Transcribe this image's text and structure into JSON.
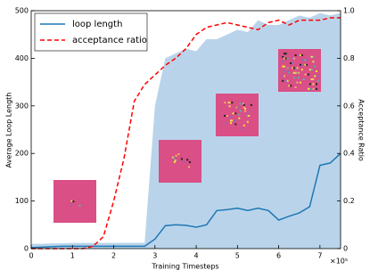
{
  "chart_data": {
    "type": "line",
    "x_label": "Training Timesteps",
    "x_multiplier": "×10⁵",
    "y_label": "Average Loop Length",
    "y2_label": "Acceptance Ratio",
    "x": [
      0,
      0.25,
      0.5,
      0.75,
      1,
      1.25,
      1.5,
      1.75,
      2,
      2.25,
      2.5,
      2.75,
      3,
      3.25,
      3.5,
      3.75,
      4,
      4.25,
      4.5,
      4.75,
      5,
      5.25,
      5.5,
      5.75,
      6,
      6.25,
      6.5,
      6.75,
      7,
      7.25,
      7.5
    ],
    "area": {
      "color": "#b9d4ea",
      "values": [
        10,
        10,
        11,
        11,
        12,
        12,
        12,
        12,
        12,
        12,
        12,
        12,
        300,
        400,
        410,
        420,
        415,
        440,
        440,
        450,
        460,
        455,
        480,
        470,
        470,
        480,
        490,
        485,
        495,
        490,
        495
      ]
    },
    "series": [
      {
        "name": "loop length",
        "color": "#1f77b4",
        "values": [
          2,
          3,
          4,
          5,
          5,
          5,
          5,
          5,
          5,
          5,
          5,
          5,
          20,
          48,
          50,
          49,
          45,
          50,
          80,
          82,
          85,
          80,
          85,
          80,
          60,
          68,
          75,
          88,
          175,
          180,
          200
        ]
      },
      {
        "name": "acceptance ratio",
        "color": "#ff0000",
        "axis": "y2",
        "dashed": true,
        "values": [
          0,
          0,
          0,
          0,
          0,
          0,
          0.01,
          0.05,
          0.2,
          0.38,
          0.62,
          0.69,
          0.73,
          0.77,
          0.8,
          0.84,
          0.9,
          0.93,
          0.94,
          0.95,
          0.94,
          0.93,
          0.92,
          0.95,
          0.96,
          0.94,
          0.96,
          0.96,
          0.96,
          0.97,
          0.97
        ]
      }
    ],
    "xlim": [
      0,
      7.5
    ],
    "xticks": [
      0,
      1,
      2,
      3,
      4,
      5,
      6,
      7
    ],
    "ylim": [
      0,
      500
    ],
    "yticks": [
      0,
      100,
      200,
      300,
      400,
      500
    ],
    "y2lim": [
      0,
      1
    ],
    "y2ticks": [
      0,
      0.2,
      0.4,
      0.6,
      0.8,
      {
        "value": 1,
        "label": "1.0"
      }
    ],
    "legend": "upper left"
  }
}
